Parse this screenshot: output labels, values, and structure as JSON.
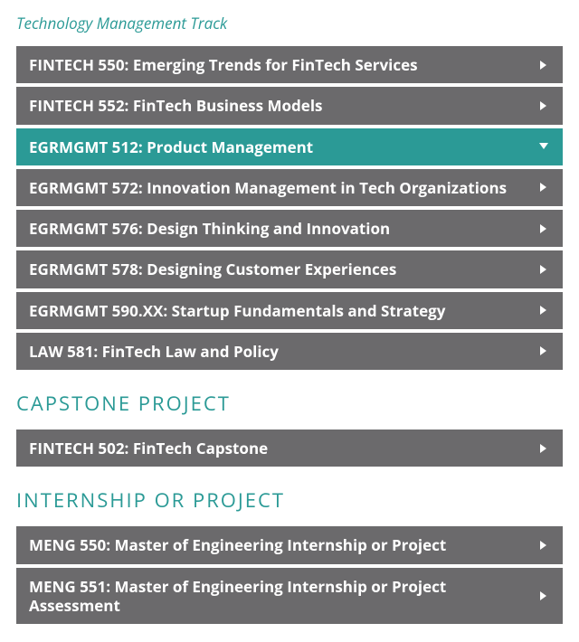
{
  "colors": {
    "teal": "#2b9a96",
    "gray": "#6b6a6c",
    "heading_teal": "#2b9a96",
    "white": "#ffffff"
  },
  "track_heading": "Technology Management Track",
  "sections": [
    {
      "id": "tech-mgmt",
      "heading": null,
      "items": [
        {
          "id": "fintech-550",
          "label": "FINTECH 550: Emerging Trends for FinTech Services",
          "active": false
        },
        {
          "id": "fintech-552",
          "label": "FINTECH 552: FinTech Business Models",
          "active": false
        },
        {
          "id": "egrmgmt-512",
          "label": "EGRMGMT 512: Product Management",
          "active": true
        },
        {
          "id": "egrmgmt-572",
          "label": "EGRMGMT 572: Innovation Management in Tech Organizations",
          "active": false
        },
        {
          "id": "egrmgmt-576",
          "label": "EGRMGMT 576: Design Thinking and Innovation",
          "active": false
        },
        {
          "id": "egrmgmt-578",
          "label": "EGRMGMT 578: Designing Customer Experiences",
          "active": false
        },
        {
          "id": "egrmgmt-590xx",
          "label": "EGRMGMT 590.XX: Startup Fundamentals and Strategy",
          "active": false
        },
        {
          "id": "law-581",
          "label": "LAW 581: FinTech Law and Policy",
          "active": false
        }
      ]
    },
    {
      "id": "capstone",
      "heading": "CAPSTONE PROJECT",
      "items": [
        {
          "id": "fintech-502",
          "label": "FINTECH 502: FinTech Capstone",
          "active": false
        }
      ]
    },
    {
      "id": "internship",
      "heading": "INTERNSHIP OR PROJECT",
      "items": [
        {
          "id": "meng-550",
          "label": "MENG 550: Master of Engineering Internship or Project",
          "active": false
        },
        {
          "id": "meng-551",
          "label": "MENG 551: Master of Engineering Internship or Project Assessment",
          "active": false
        }
      ]
    }
  ]
}
